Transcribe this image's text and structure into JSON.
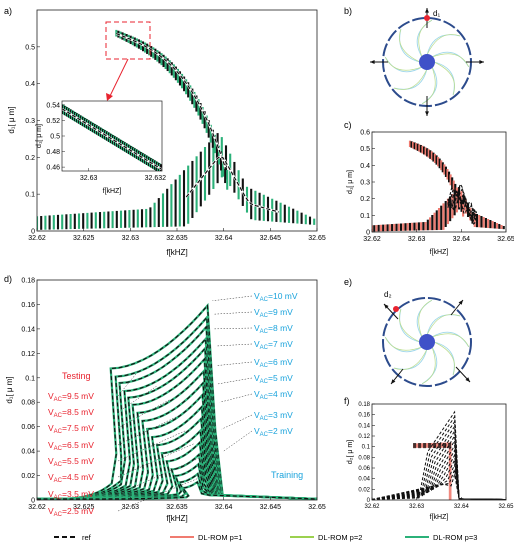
{
  "panel_labels": {
    "a": "a)",
    "b": "b)",
    "c": "c)",
    "d": "d)",
    "e": "e)",
    "f": "f)"
  },
  "chart_data": [
    {
      "id": "a",
      "type": "line",
      "xlabel": "f[kHZ]",
      "ylabel": "d₁[ μ m]",
      "xlim": [
        32.62,
        32.65
      ],
      "ylim": [
        0,
        0.6
      ],
      "xticks": [
        "32.62",
        "32.625",
        "32.63",
        "32.635",
        "32.64",
        "32.645",
        "32.65"
      ],
      "yticks": [
        "0",
        "0.1",
        "0.2",
        "0.3",
        "0.4",
        "0.5"
      ],
      "series": [
        {
          "name": "ref",
          "x": [
            32.62,
            32.632,
            32.637,
            32.6395,
            32.6405,
            32.6425,
            32.65
          ],
          "y": [
            0.02,
            0.03,
            0.08,
            0.2,
            0.27,
            0.12,
            0.03
          ]
        },
        {
          "name": "ref",
          "x": [
            32.6285,
            32.632,
            32.635,
            32.637,
            32.6385,
            32.6395,
            32.6405
          ],
          "y": [
            0.54,
            0.5,
            0.45,
            0.4,
            0.34,
            0.26,
            0.16
          ]
        }
      ],
      "inset": {
        "xlabel": "f[kHZ]",
        "ylabel": "d₁[ μ m]",
        "xlim": [
          32.6292,
          32.6322
        ],
        "ylim": [
          0.455,
          0.545
        ],
        "xticks": [
          "32.63",
          "32.632"
        ],
        "yticks": [
          "0.46",
          "0.48",
          "0.5",
          "0.52",
          "0.54"
        ]
      }
    },
    {
      "id": "c",
      "type": "line",
      "xlabel": "f[kHZ]",
      "ylabel": "d₁[ μ m]",
      "xlim": [
        32.62,
        32.65
      ],
      "ylim": [
        0,
        0.6
      ],
      "xticks": [
        "32.62",
        "32.63",
        "32.64",
        "32.65"
      ],
      "yticks": [
        "0",
        "0.1",
        "0.2",
        "0.3",
        "0.4",
        "0.5",
        "0.6"
      ]
    },
    {
      "id": "d",
      "type": "line",
      "xlabel": "f[kHZ]",
      "ylabel": "d₁[ μ m]",
      "xlim": [
        32.62,
        32.65
      ],
      "ylim": [
        0,
        0.18
      ],
      "xticks": [
        "32.62",
        "32.625",
        "32.63",
        "32.635",
        "32.64",
        "32.645",
        "32.65"
      ],
      "yticks": [
        "0",
        "0.02",
        "0.04",
        "0.06",
        "0.08",
        "0.1",
        "0.12",
        "0.14",
        "0.16",
        "0.18"
      ],
      "group_labels": {
        "testing": "Testing",
        "training": "Training"
      },
      "testing_labels": [
        "V_AC=9.5 mV",
        "V_AC=8.5 mV",
        "V_AC=7.5 mV",
        "V_AC=6.5 mV",
        "V_AC=5.5 mV",
        "V_AC=4.5 mV",
        "V_AC=3.5 mV",
        "V_AC=2.5 mV"
      ],
      "training_labels": [
        "V_AC=10 mV",
        "V_AC=9 mV",
        "V_AC=8 mV",
        "V_AC=7 mV",
        "V_AC=6 mV",
        "V_AC=5 mV",
        "V_AC=4 mV",
        "V_AC=3 mV",
        "V_AC=2 mV"
      ]
    },
    {
      "id": "f",
      "type": "line",
      "xlabel": "f[kHZ]",
      "ylabel": "d₂[ μ m]",
      "xlim": [
        32.62,
        32.65
      ],
      "ylim": [
        0,
        0.18
      ],
      "xticks": [
        "32.62",
        "32.63",
        "32.64",
        "32.65"
      ],
      "yticks": [
        "0",
        "0.02",
        "0.04",
        "0.06",
        "0.08",
        "0.1",
        "0.12",
        "0.14",
        "0.16",
        "0.18"
      ]
    }
  ],
  "diagrams": {
    "b": {
      "label": "d₁"
    },
    "e": {
      "label": "d₂"
    }
  },
  "legend": [
    {
      "name": "ref",
      "color": "#111111",
      "style": "dashed"
    },
    {
      "name": "DL-ROM p=1",
      "color": "#f07b70",
      "style": "solid"
    },
    {
      "name": "DL-ROM p=2",
      "color": "#9bd14f",
      "style": "solid"
    },
    {
      "name": "DL-ROM p=3",
      "color": "#2bb179",
      "style": "solid"
    }
  ],
  "colors": {
    "testing": "#e8232f",
    "training": "#1aa3dc",
    "green_band": "#2bb179",
    "salmon_band": "#f07b70",
    "ring": "#2c4b8c",
    "hub": "#3f51c8",
    "spring": "#9fd7ea"
  }
}
